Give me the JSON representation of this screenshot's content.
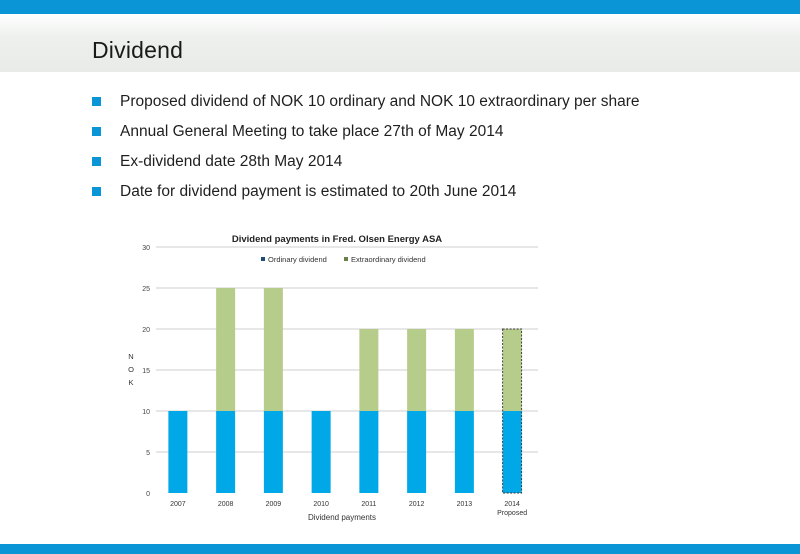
{
  "slide": {
    "title": "Dividend",
    "bullets": [
      "Proposed dividend of NOK 10 ordinary and NOK 10 extraordinary per share",
      "Annual General Meeting to take place 27th of May 2014",
      "Ex-dividend date 28th May 2014",
      "Date for dividend payment is estimated to 20th June 2014"
    ]
  },
  "colors": {
    "accent": "#0a96d6",
    "ordinary": "#00a8e8",
    "extraordinary": "#b6cc8a",
    "grid": "#bfbfbf"
  },
  "chart_data": {
    "type": "bar",
    "stacked": true,
    "title": "Dividend payments in Fred. Olsen Energy ASA",
    "xlabel": "Dividend payments",
    "ylabel": "NOK",
    "ylim": [
      0,
      30
    ],
    "yticks": [
      "0",
      "5",
      "10",
      "15",
      "20",
      "25",
      "30"
    ],
    "categories": [
      "2007",
      "2008",
      "2009",
      "2010",
      "2011",
      "2012",
      "2013",
      "2014"
    ],
    "category_sublabels": [
      "",
      "",
      "",
      "",
      "",
      "",
      "",
      "Proposed"
    ],
    "series": [
      {
        "name": "Ordinary dividend",
        "values": [
          10,
          10,
          10,
          10,
          10,
          10,
          10,
          10
        ]
      },
      {
        "name": "Extraordinary dividend",
        "values": [
          0,
          15,
          15,
          0,
          10,
          10,
          10,
          10
        ]
      }
    ],
    "legend": "top",
    "grid": true,
    "proposed_outline_category": "2014"
  }
}
